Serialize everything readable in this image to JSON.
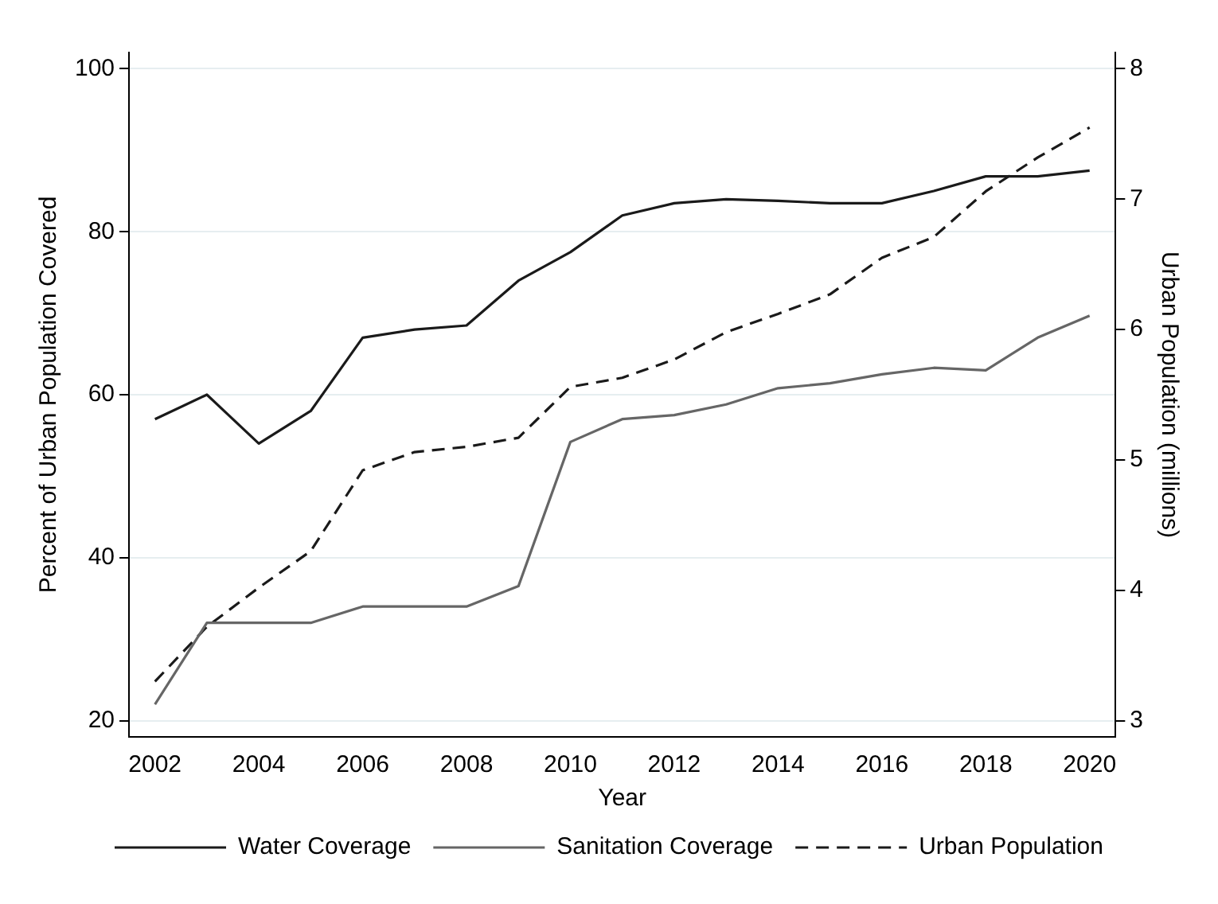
{
  "chart_data": {
    "type": "line",
    "xlabel": "Year",
    "ylabel": "Percent of Urban Population Covered",
    "y2label": "Urban Population (millions)",
    "x": [
      2002,
      2003,
      2004,
      2005,
      2006,
      2007,
      2008,
      2009,
      2010,
      2011,
      2012,
      2013,
      2014,
      2015,
      2016,
      2017,
      2018,
      2019,
      2020
    ],
    "series": [
      {
        "name": "Water Coverage",
        "color": "#1a1a1a",
        "line_style": "solid",
        "values": [
          57,
          60,
          54,
          58,
          67,
          68,
          68.5,
          74,
          77.5,
          82,
          83.5,
          84,
          83.8,
          83.5,
          83.5,
          85,
          86.8,
          86.8,
          87.5
        ]
      },
      {
        "name": "Sanitation Coverage",
        "color": "#666666",
        "line_style": "solid",
        "values": [
          22,
          32,
          32,
          32,
          34,
          34,
          34,
          36.5,
          54.2,
          57,
          57.5,
          58.8,
          60.8,
          61.4,
          62.5,
          63.3,
          63,
          67,
          69.7
        ]
      },
      {
        "name": "Urban Population",
        "color": "#1a1a1a",
        "line_style": "dashed",
        "axis": "y2",
        "values": [
          3.3,
          3.72,
          4.02,
          4.3,
          4.92,
          5.06,
          5.1,
          5.17,
          5.56,
          5.63,
          5.77,
          5.98,
          6.12,
          6.27,
          6.55,
          6.71,
          7.06,
          7.32,
          7.55
        ]
      }
    ],
    "xlim": [
      2001.5,
      2020.5
    ],
    "xticks": [
      2002,
      2004,
      2006,
      2008,
      2010,
      2012,
      2014,
      2016,
      2018,
      2020
    ],
    "ylim": [
      18,
      102
    ],
    "yticks": [
      20,
      40,
      60,
      80,
      100
    ],
    "y2lim": [
      2.875,
      8.125
    ],
    "y2ticks": [
      3,
      4,
      5,
      6,
      7,
      8
    ],
    "grid": "y",
    "legend": "bottom",
    "marker": "none"
  }
}
